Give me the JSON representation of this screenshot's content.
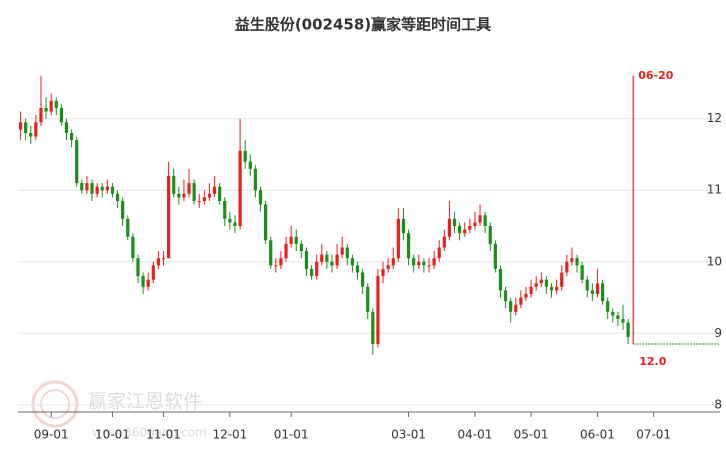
{
  "chart_data": {
    "type": "candlestick",
    "title": "益生股份(002458)赢家等距时间工具",
    "watermark": {
      "name": "赢家江恩软件",
      "url": "www.360gann.com"
    },
    "up_color": "#e8211e",
    "down_color": "#1b8f1b",
    "ylim": [
      7.9,
      13.1
    ],
    "yticks": [
      8,
      9,
      10,
      11,
      12
    ],
    "grid": true,
    "xlim": [
      -0.5,
      137
    ],
    "xticks": [
      {
        "value": 6,
        "label": "09-01"
      },
      {
        "value": 18,
        "label": "10-01"
      },
      {
        "value": 28,
        "label": "11-01"
      },
      {
        "value": 41,
        "label": "12-01"
      },
      {
        "value": 53,
        "label": "01-01"
      },
      {
        "value": 76,
        "label": "03-01"
      },
      {
        "value": 89,
        "label": "04-01"
      },
      {
        "value": 100,
        "label": "05-01"
      },
      {
        "value": 113,
        "label": "06-01"
      },
      {
        "value": 124,
        "label": "07-01"
      }
    ],
    "marker": {
      "x": 120,
      "top": 12.6,
      "bottom": 8.85,
      "label": "06-20",
      "note": "12.0",
      "color": "#e8211e"
    },
    "level": {
      "value": 8.85,
      "color": "#1b8f1b"
    },
    "open": [
      11.85,
      11.95,
      11.8,
      11.75,
      11.95,
      12.15,
      12.1,
      12.25,
      12.15,
      11.95,
      11.8,
      11.7,
      11.1,
      11.0,
      11.1,
      10.95,
      11.05,
      11.0,
      11.05,
      10.95,
      10.85,
      10.6,
      10.35,
      10.05,
      9.8,
      9.65,
      9.75,
      9.95,
      10.05,
      10.05,
      11.2,
      10.95,
      10.9,
      10.95,
      11.1,
      10.85,
      10.85,
      10.9,
      10.95,
      11.05,
      10.85,
      10.6,
      10.55,
      10.5,
      11.55,
      11.4,
      11.3,
      11.0,
      10.8,
      10.3,
      9.95,
      9.95,
      10.05,
      10.25,
      10.35,
      10.25,
      10.15,
      9.9,
      9.8,
      10.0,
      10.1,
      10.0,
      9.95,
      10.1,
      10.2,
      10.05,
      9.95,
      9.85,
      9.65,
      9.3,
      8.85,
      9.8,
      9.9,
      9.95,
      10.05,
      10.6,
      10.4,
      10.05,
      9.95,
      10.0,
      9.95,
      9.95,
      10.05,
      10.2,
      10.35,
      10.6,
      10.5,
      10.4,
      10.45,
      10.5,
      10.55,
      10.65,
      10.5,
      10.25,
      9.9,
      9.6,
      9.45,
      9.3,
      9.4,
      9.5,
      9.55,
      9.65,
      9.7,
      9.75,
      9.65,
      9.6,
      9.65,
      9.85,
      10.0,
      10.05,
      9.95,
      9.75,
      9.6,
      9.55,
      9.7,
      9.45,
      9.3,
      9.25,
      9.2,
      9.15
    ],
    "high": [
      12.1,
      12.0,
      11.9,
      12.05,
      12.6,
      12.3,
      12.35,
      12.3,
      12.2,
      12.0,
      11.85,
      11.75,
      11.15,
      11.2,
      11.15,
      11.1,
      11.1,
      11.15,
      11.1,
      11.0,
      10.9,
      10.65,
      10.4,
      10.1,
      9.85,
      9.85,
      10.0,
      10.15,
      10.15,
      11.4,
      11.3,
      11.05,
      11.15,
      11.3,
      11.15,
      10.95,
      11.0,
      11.1,
      11.2,
      11.1,
      10.9,
      10.7,
      10.65,
      12.0,
      11.7,
      11.5,
      11.35,
      11.05,
      10.85,
      10.35,
      10.05,
      10.15,
      10.35,
      10.5,
      10.45,
      10.3,
      10.2,
      9.95,
      10.1,
      10.25,
      10.15,
      10.1,
      10.25,
      10.35,
      10.25,
      10.1,
      10.0,
      9.9,
      9.7,
      9.35,
      9.9,
      10.0,
      10.05,
      10.2,
      10.75,
      10.75,
      10.45,
      10.1,
      10.1,
      10.05,
      10.05,
      10.15,
      10.3,
      10.45,
      10.85,
      10.7,
      10.55,
      10.55,
      10.6,
      10.7,
      10.8,
      10.7,
      10.55,
      10.3,
      9.95,
      9.65,
      9.5,
      9.5,
      9.6,
      9.65,
      9.75,
      9.8,
      9.85,
      9.8,
      9.7,
      9.75,
      9.95,
      10.1,
      10.2,
      10.1,
      10.0,
      9.8,
      9.7,
      9.9,
      9.75,
      9.5,
      9.35,
      9.3,
      9.4,
      9.2
    ],
    "low": [
      11.7,
      11.7,
      11.65,
      11.7,
      11.9,
      12.0,
      12.05,
      12.05,
      11.9,
      11.7,
      11.6,
      11.05,
      10.95,
      10.95,
      10.85,
      10.9,
      10.9,
      10.95,
      10.9,
      10.75,
      10.5,
      10.3,
      10.0,
      9.7,
      9.55,
      9.6,
      9.7,
      9.9,
      9.95,
      10.05,
      10.9,
      10.8,
      10.85,
      10.9,
      10.8,
      10.75,
      10.8,
      10.85,
      10.9,
      10.8,
      10.5,
      10.45,
      10.4,
      10.45,
      11.3,
      11.2,
      10.9,
      10.7,
      10.25,
      9.9,
      9.85,
      9.9,
      10.0,
      10.2,
      10.15,
      10.05,
      9.8,
      9.75,
      9.75,
      9.95,
      9.9,
      9.85,
      9.9,
      10.05,
      9.95,
      9.85,
      9.75,
      9.55,
      9.2,
      8.7,
      8.8,
      9.7,
      9.85,
      9.9,
      10.0,
      10.3,
      9.95,
      9.85,
      9.9,
      9.85,
      9.85,
      9.9,
      10.0,
      10.15,
      10.3,
      10.4,
      10.3,
      10.35,
      10.4,
      10.45,
      10.5,
      10.4,
      10.15,
      9.85,
      9.5,
      9.35,
      9.15,
      9.25,
      9.35,
      9.45,
      9.5,
      9.6,
      9.65,
      9.55,
      9.5,
      9.55,
      9.6,
      9.8,
      9.95,
      9.85,
      9.7,
      9.5,
      9.45,
      9.5,
      9.4,
      9.2,
      9.15,
      9.1,
      9.05,
      8.85
    ],
    "close": [
      11.95,
      11.8,
      11.75,
      11.95,
      12.15,
      12.1,
      12.25,
      12.15,
      11.95,
      11.8,
      11.7,
      11.1,
      11.0,
      11.1,
      10.95,
      11.05,
      11.0,
      11.05,
      10.95,
      10.85,
      10.6,
      10.35,
      10.05,
      9.8,
      9.65,
      9.75,
      9.95,
      10.05,
      10.05,
      11.2,
      10.95,
      10.9,
      10.95,
      11.1,
      10.85,
      10.85,
      10.9,
      10.95,
      11.05,
      10.85,
      10.6,
      10.55,
      10.5,
      11.55,
      11.4,
      11.3,
      11.0,
      10.8,
      10.3,
      9.95,
      9.95,
      10.05,
      10.25,
      10.35,
      10.25,
      10.15,
      9.9,
      9.8,
      10.0,
      10.1,
      10.0,
      9.95,
      10.1,
      10.2,
      10.05,
      9.95,
      9.85,
      9.65,
      9.3,
      8.85,
      9.8,
      9.9,
      9.95,
      10.05,
      10.6,
      10.4,
      10.05,
      9.95,
      10.0,
      9.95,
      9.95,
      10.05,
      10.2,
      10.35,
      10.6,
      10.5,
      10.4,
      10.45,
      10.5,
      10.55,
      10.65,
      10.5,
      10.25,
      9.9,
      9.6,
      9.45,
      9.3,
      9.4,
      9.5,
      9.55,
      9.65,
      9.7,
      9.75,
      9.65,
      9.6,
      9.65,
      9.85,
      10.0,
      10.05,
      9.95,
      9.75,
      9.6,
      9.55,
      9.7,
      9.45,
      9.3,
      9.25,
      9.2,
      9.15,
      8.95
    ]
  }
}
